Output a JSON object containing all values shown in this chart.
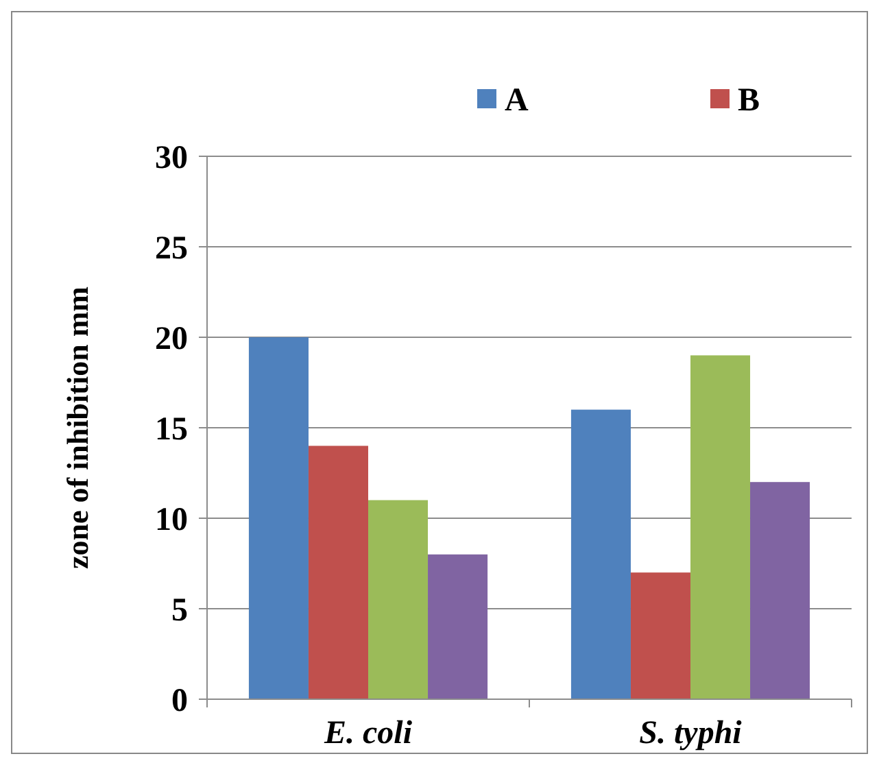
{
  "chart_data": {
    "type": "bar",
    "ylabel": "zone of inhibition mm",
    "categories": [
      "E. coli",
      "S. typhi"
    ],
    "series": [
      {
        "name": "A",
        "color": "#4f81bd",
        "values": [
          20,
          16
        ]
      },
      {
        "name": "B",
        "color": "#c0504d",
        "values": [
          14,
          7
        ]
      },
      {
        "color": "#9bbb59",
        "values": [
          11,
          19
        ]
      },
      {
        "color": "#8064a2",
        "values": [
          8,
          12
        ]
      }
    ],
    "ylim": [
      0,
      30
    ],
    "yticks": [
      0,
      5,
      10,
      15,
      20,
      25,
      30
    ],
    "grid": "y",
    "legend": "top"
  }
}
